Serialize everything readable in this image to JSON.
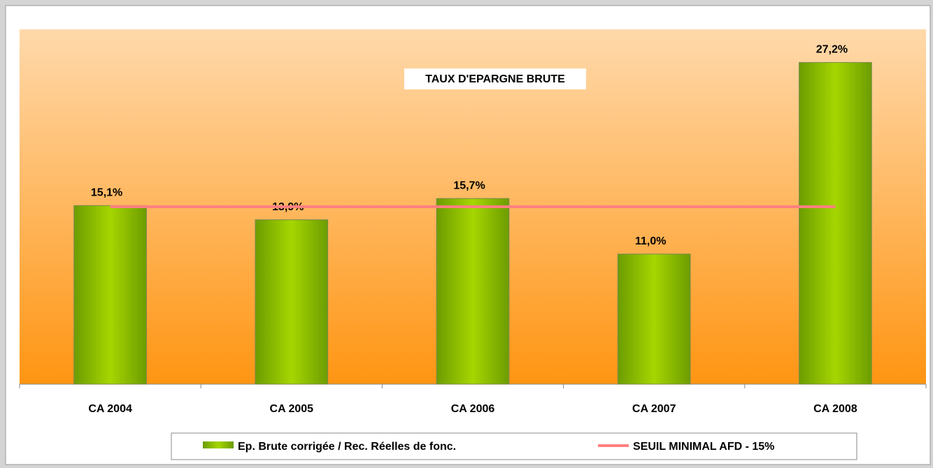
{
  "chart_data": {
    "type": "bar",
    "title": "TAUX D'EPARGNE BRUTE",
    "categories": [
      "CA 2004",
      "CA 2005",
      "CA 2006",
      "CA 2007",
      "CA 2008"
    ],
    "series": [
      {
        "name": "Ep. Brute corrigée /  Rec. Réelles de fonc.",
        "type": "bar",
        "color": "#8fc400",
        "values": [
          15.1,
          13.9,
          15.7,
          11.0,
          27.2
        ],
        "value_labels": [
          "15,1%",
          "13,9%",
          "15,7%",
          "11,0%",
          "27,2%"
        ]
      },
      {
        "name": "SEUIL MINIMAL AFD - 15%",
        "type": "line",
        "color": "#ff8080",
        "values": [
          15,
          15,
          15,
          15,
          15
        ]
      }
    ],
    "ylim": [
      0,
      30
    ]
  }
}
